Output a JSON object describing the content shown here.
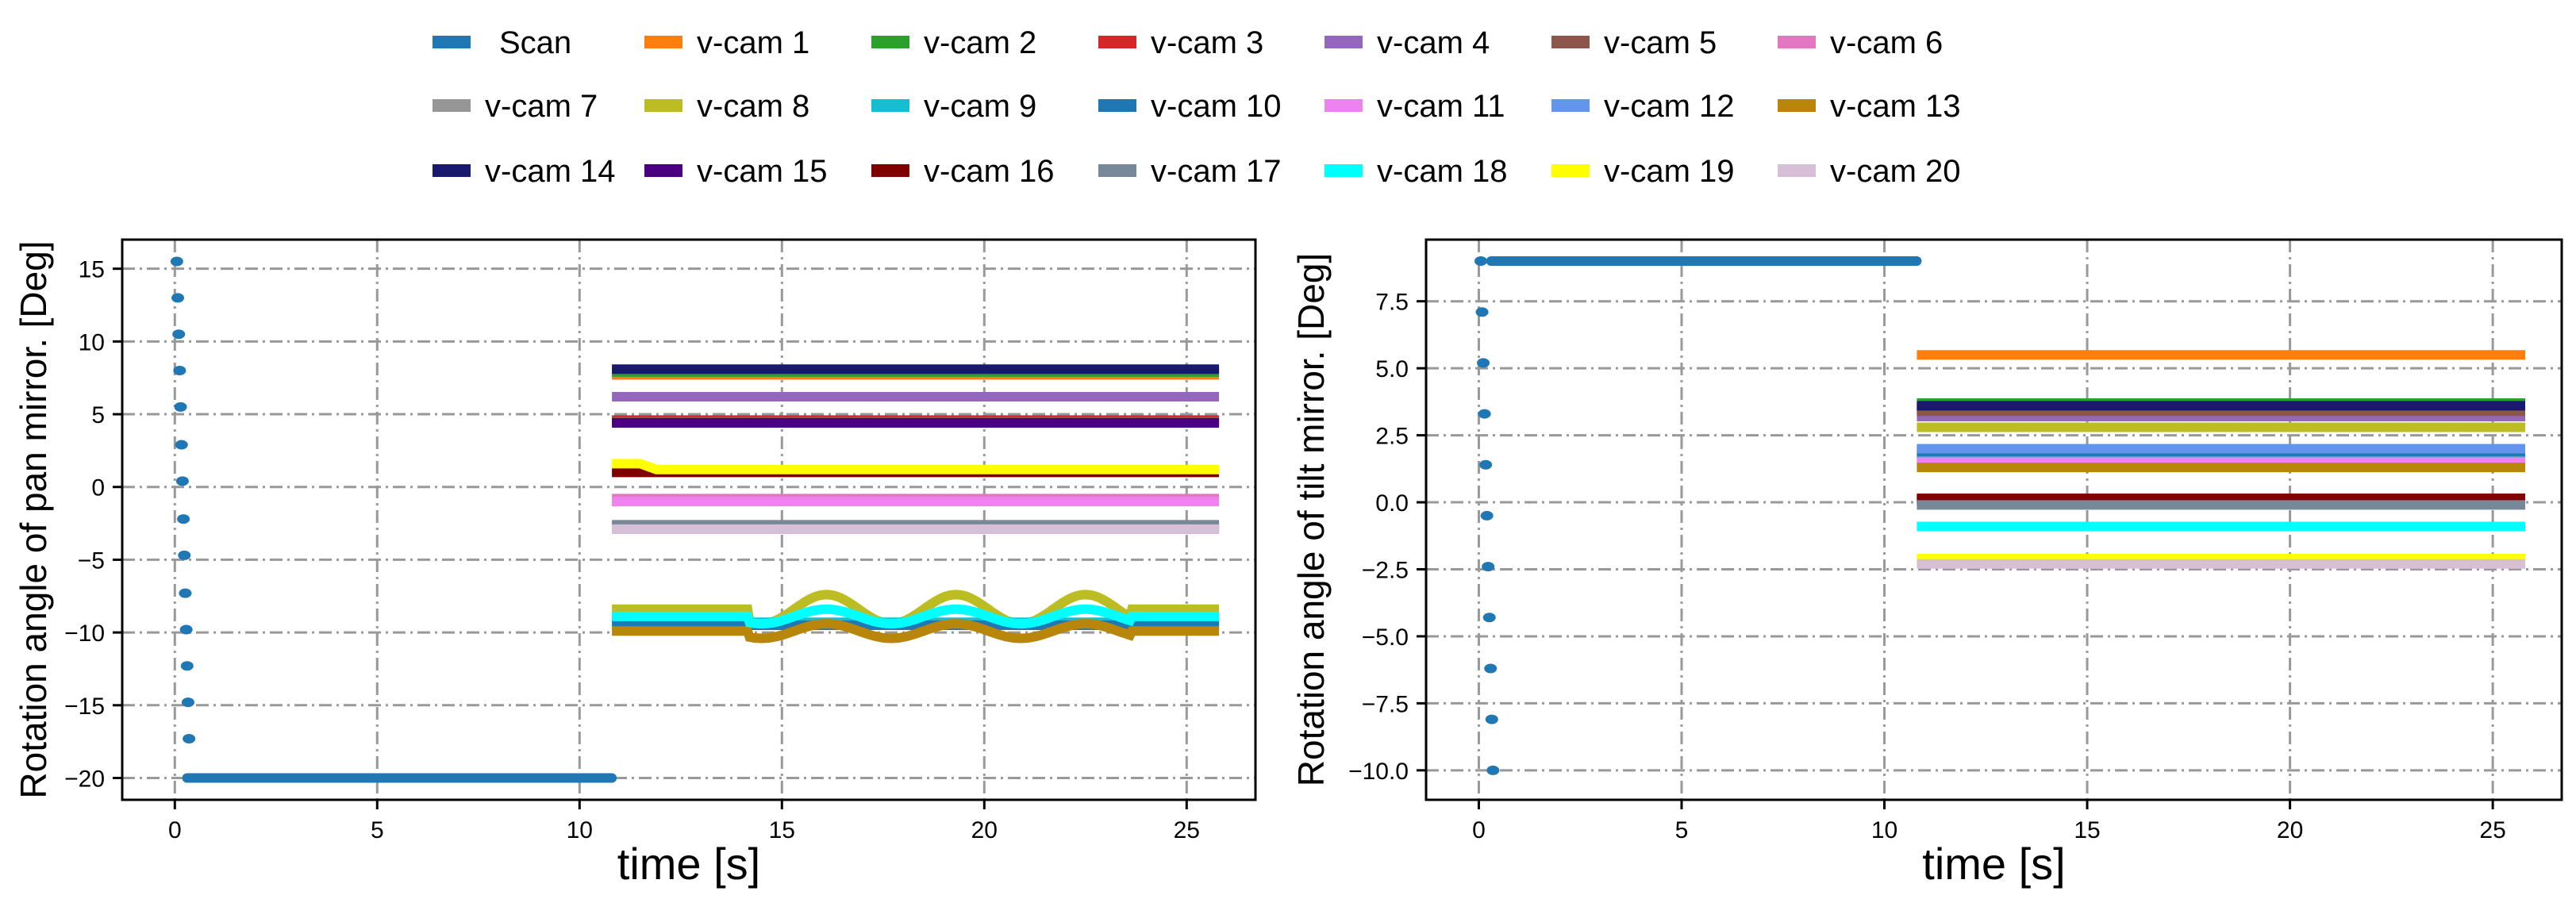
{
  "chart_data": [
    {
      "type": "scatter",
      "panel": "left",
      "xlabel": "time [s]",
      "ylabel": "Rotation angle of pan mirror. [Deg]",
      "xlim": [
        -1.3,
        26.7
      ],
      "ylim": [
        -21.5,
        17.0
      ],
      "xticks": [
        0,
        5,
        10,
        15,
        20,
        25
      ],
      "yticks": [
        15,
        10,
        5,
        0,
        -5,
        -10,
        -15,
        -20
      ],
      "grid": true,
      "series": [
        {
          "name": "Scan",
          "kind": "scan",
          "scan_points_y": [
            15.5,
            13.0,
            10.5,
            8.0,
            5.5,
            2.9,
            0.4,
            -2.2,
            -4.7,
            -7.3,
            -9.8,
            -12.3,
            -14.8,
            -17.3
          ],
          "x_start": 0.05,
          "x_end": 0.35,
          "hold_y": -20.0,
          "hold_x": [
            0.3,
            10.8
          ]
        },
        {
          "name": "v-cam 1",
          "kind": "flat",
          "y": 7.7,
          "x": [
            10.8,
            25.8
          ]
        },
        {
          "name": "v-cam 2",
          "kind": "flat",
          "y": 7.9,
          "x": [
            10.8,
            25.8
          ]
        },
        {
          "name": "v-cam 3",
          "kind": "flat",
          "y": 4.6,
          "x": [
            10.8,
            25.8
          ]
        },
        {
          "name": "v-cam 4",
          "kind": "flat",
          "y": 6.2,
          "x": [
            10.8,
            25.8
          ]
        },
        {
          "name": "v-cam 5",
          "kind": "flat",
          "y": 4.5,
          "x": [
            10.8,
            25.8
          ]
        },
        {
          "name": "v-cam 6",
          "kind": "flat",
          "y": -0.8,
          "x": [
            10.8,
            25.8
          ]
        },
        {
          "name": "v-cam 7",
          "kind": "flat",
          "y": -2.7,
          "x": [
            10.8,
            25.8
          ]
        },
        {
          "name": "v-cam 8",
          "kind": "wave",
          "y": -8.4,
          "amp": 1.0,
          "period": 3.2,
          "phase": 15.3,
          "wave_from": 14.2,
          "wave_to": 23.6,
          "x": [
            10.8,
            25.8
          ]
        },
        {
          "name": "v-cam 9",
          "kind": "flat",
          "y": -9.3,
          "x": [
            10.8,
            25.8
          ]
        },
        {
          "name": "v-cam 10",
          "kind": "flat",
          "y": -9.5,
          "x": [
            10.8,
            25.8
          ]
        },
        {
          "name": "v-cam 11",
          "kind": "flat",
          "y": -1.0,
          "x": [
            10.8,
            25.8
          ]
        },
        {
          "name": "v-cam 12",
          "kind": "flat",
          "y": -2.9,
          "x": [
            10.8,
            25.8
          ]
        },
        {
          "name": "v-cam 13",
          "kind": "wave",
          "y": -9.9,
          "amp": 0.5,
          "period": 3.2,
          "phase": 15.3,
          "wave_from": 14.2,
          "wave_to": 23.6,
          "x": [
            10.8,
            25.8
          ]
        },
        {
          "name": "v-cam 14",
          "kind": "flat",
          "y": 8.1,
          "x": [
            10.8,
            25.8
          ]
        },
        {
          "name": "v-cam 15",
          "kind": "flat",
          "y": 4.4,
          "x": [
            10.8,
            25.8
          ]
        },
        {
          "name": "v-cam 16",
          "kind": "flat",
          "y": 1.0,
          "x": [
            10.8,
            25.8
          ]
        },
        {
          "name": "v-cam 17",
          "kind": "flat",
          "y": -2.6,
          "x": [
            10.8,
            25.8
          ]
        },
        {
          "name": "v-cam 18",
          "kind": "wave",
          "y": -8.9,
          "amp": 0.5,
          "period": 3.2,
          "phase": 15.3,
          "wave_from": 14.2,
          "wave_to": 23.6,
          "x": [
            10.8,
            25.8
          ]
        },
        {
          "name": "v-cam 19",
          "kind": "flat",
          "y": 1.2,
          "x": [
            10.8,
            25.8
          ],
          "start_bump": 0.4
        },
        {
          "name": "v-cam 20",
          "kind": "flat",
          "y": -2.9,
          "x": [
            10.8,
            25.8
          ]
        }
      ]
    },
    {
      "type": "scatter",
      "panel": "right",
      "xlabel": "time [s]",
      "ylabel": "Rotation angle of tilt mirror. [Deg]",
      "xlim": [
        -1.3,
        26.7
      ],
      "ylim": [
        -11.1,
        9.8
      ],
      "xticks": [
        0,
        5,
        10,
        15,
        20,
        25
      ],
      "yticks": [
        7.5,
        5.0,
        2.5,
        0.0,
        -2.5,
        -5.0,
        -7.5,
        -10.0
      ],
      "grid": true,
      "series": [
        {
          "name": "Scan",
          "kind": "scan",
          "scan_points_y": [
            9.0,
            7.1,
            5.2,
            3.3,
            1.4,
            -0.5,
            -2.4,
            -4.3,
            -6.2,
            -8.1,
            -10.0
          ],
          "x_start": 0.05,
          "x_end": 0.35,
          "hold_y": 9.0,
          "hold_x": [
            0.3,
            10.8
          ]
        },
        {
          "name": "v-cam 1",
          "kind": "flat",
          "y": 5.5,
          "x": [
            10.8,
            25.8
          ]
        },
        {
          "name": "v-cam 2",
          "kind": "flat",
          "y": 3.7,
          "x": [
            10.8,
            25.8
          ]
        },
        {
          "name": "v-cam 3",
          "kind": "flat",
          "y": 3.5,
          "x": [
            10.8,
            25.8
          ]
        },
        {
          "name": "v-cam 4",
          "kind": "flat",
          "y": 3.2,
          "x": [
            10.8,
            25.8
          ]
        },
        {
          "name": "v-cam 5",
          "kind": "flat",
          "y": 3.4,
          "x": [
            10.8,
            25.8
          ]
        },
        {
          "name": "v-cam 6",
          "kind": "flat",
          "y": 1.6,
          "x": [
            10.8,
            25.8
          ]
        },
        {
          "name": "v-cam 7",
          "kind": "flat",
          "y": 0.0,
          "x": [
            10.8,
            25.8
          ]
        },
        {
          "name": "v-cam 8",
          "kind": "flat",
          "y": 2.8,
          "x": [
            10.8,
            25.8
          ]
        },
        {
          "name": "v-cam 9",
          "kind": "flat",
          "y": 1.8,
          "x": [
            10.8,
            25.8
          ]
        },
        {
          "name": "v-cam 10",
          "kind": "flat",
          "y": 1.9,
          "x": [
            10.8,
            25.8
          ]
        },
        {
          "name": "v-cam 11",
          "kind": "flat",
          "y": 1.5,
          "x": [
            10.8,
            25.8
          ]
        },
        {
          "name": "v-cam 12",
          "kind": "flat",
          "y": 2.0,
          "x": [
            10.8,
            25.8
          ]
        },
        {
          "name": "v-cam 13",
          "kind": "flat",
          "y": 1.3,
          "x": [
            10.8,
            25.8
          ]
        },
        {
          "name": "v-cam 14",
          "kind": "flat",
          "y": 3.6,
          "x": [
            10.8,
            25.8
          ]
        },
        {
          "name": "v-cam 15",
          "kind": "flat",
          "y": 0.1,
          "x": [
            10.8,
            25.8
          ]
        },
        {
          "name": "v-cam 16",
          "kind": "flat",
          "y": 0.15,
          "x": [
            10.8,
            25.8
          ]
        },
        {
          "name": "v-cam 17",
          "kind": "flat",
          "y": -0.1,
          "x": [
            10.8,
            25.8
          ]
        },
        {
          "name": "v-cam 18",
          "kind": "flat",
          "y": -0.9,
          "x": [
            10.8,
            25.8
          ]
        },
        {
          "name": "v-cam 19",
          "kind": "flat",
          "y": -2.1,
          "x": [
            10.8,
            25.8
          ]
        },
        {
          "name": "v-cam 20",
          "kind": "flat",
          "y": -2.3,
          "x": [
            10.8,
            25.8
          ]
        }
      ]
    }
  ],
  "legend": {
    "placement": "top-center",
    "entries": [
      {
        "name": "Scan",
        "color": "#1f77b4"
      },
      {
        "name": "v-cam 1",
        "color": "#ff7f0e"
      },
      {
        "name": "v-cam 2",
        "color": "#2ca02c"
      },
      {
        "name": "v-cam 3",
        "color": "#d62728"
      },
      {
        "name": "v-cam 4",
        "color": "#9467bd"
      },
      {
        "name": "v-cam 5",
        "color": "#8c564b"
      },
      {
        "name": "v-cam 6",
        "color": "#e377c2"
      },
      {
        "name": "v-cam 7",
        "color": "#969696"
      },
      {
        "name": "v-cam 8",
        "color": "#bcbd22"
      },
      {
        "name": "v-cam 9",
        "color": "#17becf"
      },
      {
        "name": "v-cam 10",
        "color": "#1f77b4"
      },
      {
        "name": "v-cam 11",
        "color": "#ee82ee"
      },
      {
        "name": "v-cam 12",
        "color": "#6495ed"
      },
      {
        "name": "v-cam 13",
        "color": "#b8860b"
      },
      {
        "name": "v-cam 14",
        "color": "#191970"
      },
      {
        "name": "v-cam 15",
        "color": "#4b0082"
      },
      {
        "name": "v-cam 16",
        "color": "#800000"
      },
      {
        "name": "v-cam 17",
        "color": "#778899"
      },
      {
        "name": "v-cam 18",
        "color": "#00ffff"
      },
      {
        "name": "v-cam 19",
        "color": "#ffff00"
      },
      {
        "name": "v-cam 20",
        "color": "#d8bfd8"
      }
    ]
  },
  "colors": {
    "axis": "#000000",
    "grid": "#999999",
    "background": "#ffffff"
  }
}
